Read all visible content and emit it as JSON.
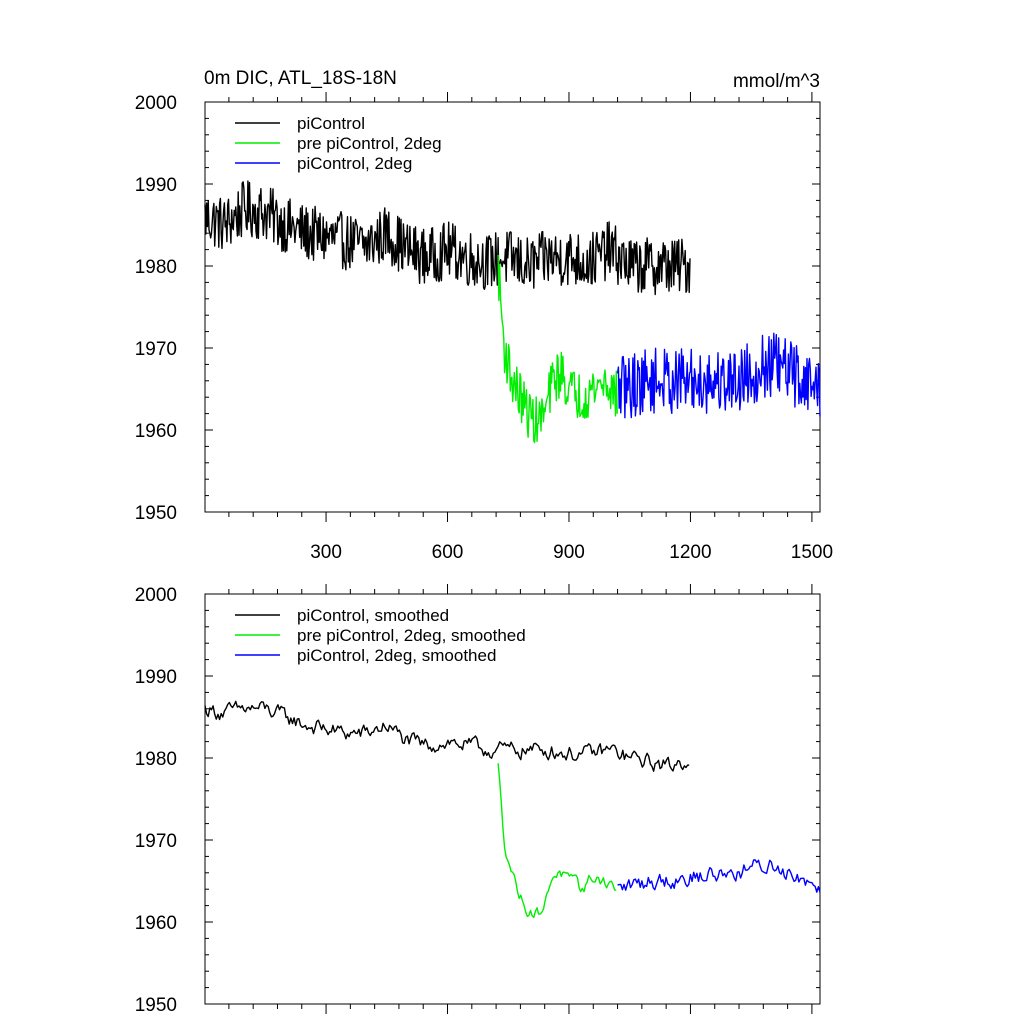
{
  "title_left": "0m DIC, ATL_18S-18N",
  "title_right": "mmol/m^3",
  "chart_data": [
    {
      "type": "line",
      "xlim": [
        1,
        1520
      ],
      "ylim": [
        1950,
        2000
      ],
      "xticks": [
        300,
        600,
        900,
        1200,
        1500
      ],
      "xtick_labels": [
        "300",
        "600",
        "900",
        "1200",
        "1500"
      ],
      "yticks": [
        1950,
        1960,
        1970,
        1980,
        1990,
        2000
      ],
      "ytick_labels": [
        "1950",
        "1960",
        "1970",
        "1980",
        "1990",
        "2000"
      ],
      "legend_position": "top-left",
      "series": [
        {
          "name": "piControl",
          "color": "#000000",
          "x": [
            1,
            50,
            100,
            150,
            200,
            250,
            300,
            350,
            400,
            450,
            500,
            550,
            600,
            650,
            700,
            750,
            800,
            850,
            900,
            950,
            1000,
            1050,
            1100,
            1150,
            1200
          ],
          "y": [
            1986,
            1985,
            1987,
            1986.5,
            1985,
            1984,
            1983.5,
            1983,
            1982.5,
            1984,
            1982,
            1981,
            1982,
            1981,
            1980.5,
            1981,
            1980,
            1981,
            1981,
            1980.5,
            1982,
            1980,
            1980,
            1980,
            1980
          ],
          "noise": 3.5
        },
        {
          "name": "pre piControl, 2deg",
          "color": "#00ee00",
          "x": [
            725,
            740,
            760,
            780,
            800,
            820,
            840,
            860,
            880,
            900,
            930,
            960,
            990,
            1020
          ],
          "y": [
            1980,
            1970,
            1966,
            1964,
            1962,
            1961,
            1962,
            1966,
            1967,
            1965,
            1964,
            1965,
            1966,
            1964
          ],
          "noise": 3.0
        },
        {
          "name": "piControl, 2deg",
          "color": "#0000ff",
          "x": [
            1020,
            1100,
            1200,
            1300,
            1400,
            1450,
            1520
          ],
          "y": [
            1965,
            1966,
            1966,
            1966,
            1968,
            1967,
            1965
          ],
          "noise": 4.0
        }
      ]
    },
    {
      "type": "line",
      "xlim": [
        1,
        1520
      ],
      "ylim": [
        1950,
        2000
      ],
      "xticks": [
        300,
        600,
        900,
        1200,
        1500
      ],
      "yticks": [
        1950,
        1960,
        1970,
        1980,
        1990,
        2000
      ],
      "ytick_labels": [
        "1950",
        "1960",
        "1970",
        "1980",
        "1990",
        "2000"
      ],
      "legend_position": "top-left",
      "series": [
        {
          "name": "piControl, smoothed",
          "color": "#000000",
          "x": [
            1,
            50,
            100,
            150,
            200,
            250,
            300,
            350,
            400,
            450,
            500,
            550,
            600,
            650,
            700,
            750,
            800,
            850,
            900,
            950,
            1000,
            1050,
            1100,
            1150,
            1200
          ],
          "y": [
            1986,
            1985.5,
            1986,
            1986,
            1985,
            1984,
            1983.5,
            1983,
            1983,
            1984,
            1982,
            1981.5,
            1982,
            1981.5,
            1981,
            1981,
            1981,
            1981,
            1980.5,
            1980.5,
            1981,
            1980,
            1979.5,
            1979,
            1980
          ],
          "noise": 1.8
        },
        {
          "name": "pre piControl, 2deg, smoothed",
          "color": "#00ee00",
          "x": [
            725,
            740,
            760,
            780,
            800,
            820,
            840,
            860,
            880,
            900,
            930,
            960,
            990,
            1020
          ],
          "y": [
            1979,
            1970,
            1966,
            1963,
            1961.5,
            1961,
            1962,
            1966,
            1966,
            1965,
            1964,
            1965.5,
            1965,
            1964
          ],
          "noise": 1.5
        },
        {
          "name": "piControl, 2deg, smoothed",
          "color": "#0000ff",
          "x": [
            1020,
            1100,
            1200,
            1300,
            1400,
            1450,
            1520
          ],
          "y": [
            1964,
            1965,
            1965.5,
            1966,
            1967,
            1966,
            1964.5
          ],
          "noise": 2.0
        }
      ]
    }
  ]
}
